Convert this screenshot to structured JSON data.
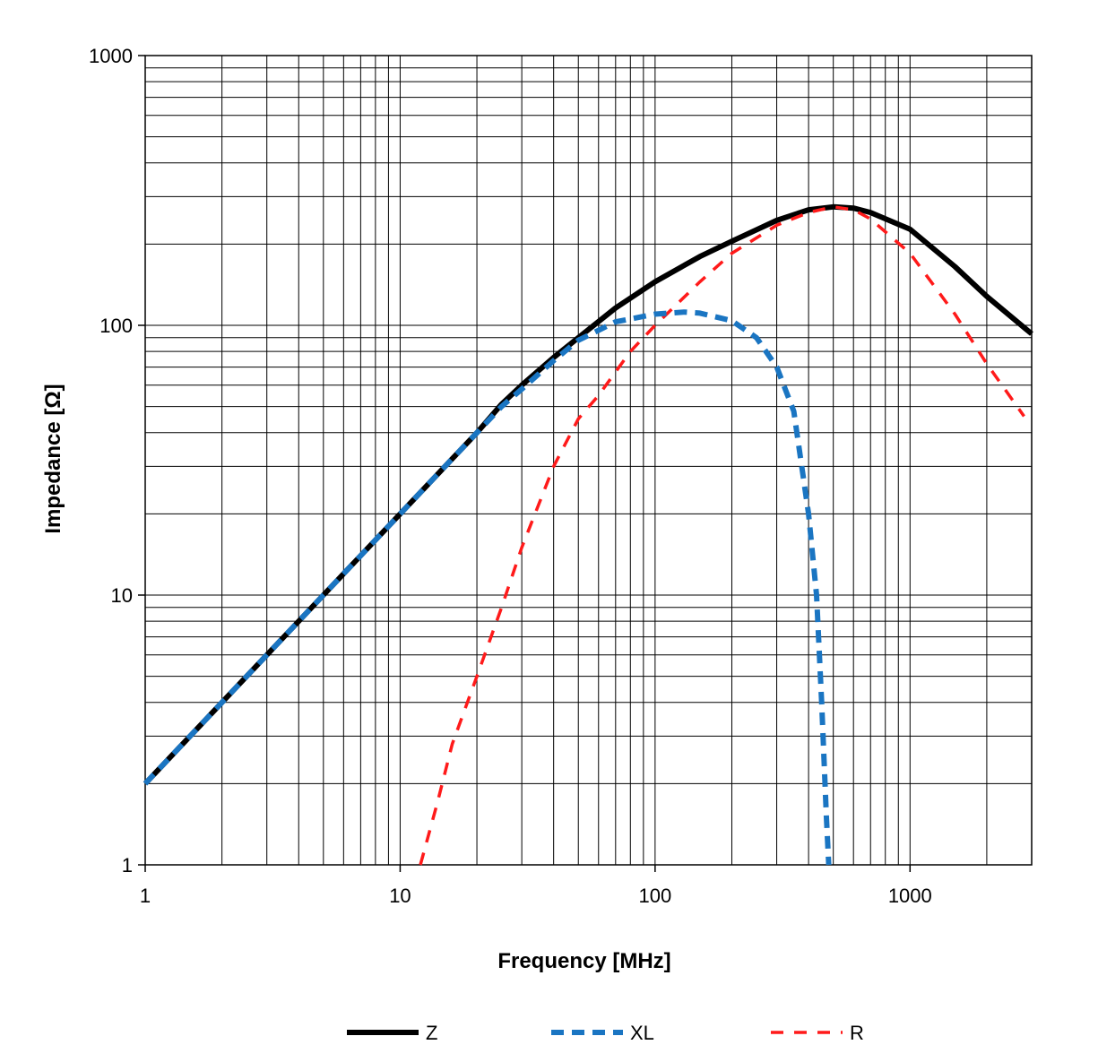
{
  "chart_data": {
    "type": "line",
    "title": "",
    "xlabel": "Frequency [MHz]",
    "ylabel": "Impedance [Ω]",
    "xscale": "log",
    "yscale": "log",
    "xlim": [
      1,
      3000
    ],
    "ylim": [
      1,
      1000
    ],
    "x_ticks": [
      "1",
      "10",
      "100",
      "1000"
    ],
    "y_ticks": [
      "1",
      "10",
      "100",
      "1000"
    ],
    "grid": true,
    "legend_position": "bottom",
    "series": [
      {
        "name": "Z",
        "color": "#000000",
        "style": "solid",
        "x": [
          1,
          2,
          3,
          5,
          7,
          10,
          15,
          20,
          25,
          30,
          40,
          50,
          70,
          100,
          150,
          200,
          300,
          400,
          500,
          600,
          700,
          1000,
          1500,
          2000,
          3000
        ],
        "y": [
          2,
          4,
          6,
          10,
          14,
          20,
          30,
          40,
          51,
          60,
          76,
          90,
          116,
          145,
          180,
          205,
          245,
          268,
          275,
          272,
          262,
          227,
          165,
          128,
          93
        ]
      },
      {
        "name": "XL",
        "color": "#1a75c2",
        "style": "dashed",
        "x": [
          1,
          2,
          3,
          5,
          7,
          10,
          15,
          20,
          25,
          30,
          40,
          50,
          70,
          100,
          130,
          150,
          200,
          250,
          300,
          350,
          400,
          430,
          450,
          470,
          480
        ],
        "y": [
          2,
          4,
          6,
          10,
          14,
          20,
          30,
          40,
          50,
          58,
          74,
          88,
          103,
          110,
          112,
          111,
          104,
          90,
          70,
          48,
          20,
          10,
          4,
          1.5,
          1
        ]
      },
      {
        "name": "R",
        "color": "#ff1a1a",
        "style": "dashed",
        "x": [
          12,
          14,
          16,
          18,
          20,
          25,
          30,
          40,
          50,
          60,
          80,
          100,
          150,
          200,
          300,
          400,
          500,
          600,
          700,
          1000,
          1500,
          2000,
          2800
        ],
        "y": [
          1,
          1.7,
          2.8,
          3.8,
          5,
          9,
          15,
          30,
          45,
          55,
          80,
          100,
          145,
          185,
          235,
          262,
          275,
          268,
          248,
          185,
          110,
          72,
          46
        ]
      }
    ]
  }
}
